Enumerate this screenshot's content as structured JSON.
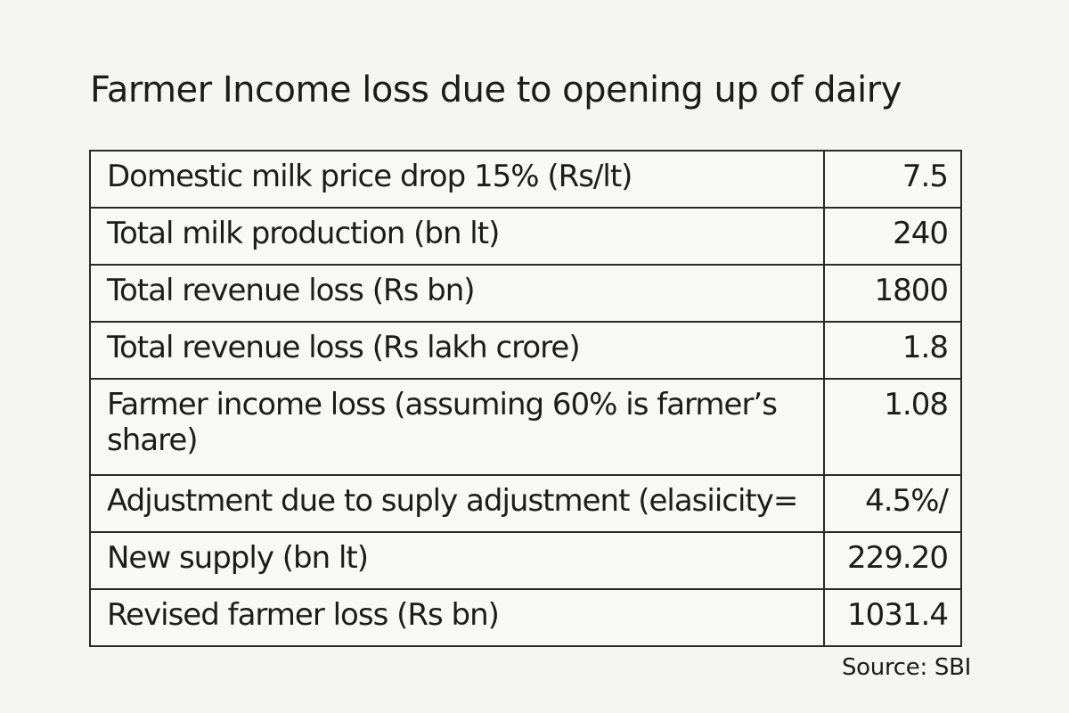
{
  "title": "Farmer Income loss due to opening up of dairy",
  "table": {
    "rows": [
      {
        "label": "Domestic milk price drop 15% (Rs/lt)",
        "value": "7.5"
      },
      {
        "label": "Total milk production (bn lt)",
        "value": "240"
      },
      {
        "label": "Total revenue loss (Rs bn)",
        "value": "1800"
      },
      {
        "label": "Total revenue loss (Rs lakh crore)",
        "value": "1.8"
      },
      {
        "label": "Farmer income loss (assuming 60% is farmer’s share)",
        "value": "1.08"
      },
      {
        "label": "Adjustment due to suply adjustment (elasiicity=",
        "value": "4.5%/"
      },
      {
        "label": "New supply (bn lt)",
        "value": "229.20"
      },
      {
        "label": "Revised farmer loss (Rs bn)",
        "value": "1031.4"
      }
    ]
  },
  "source": "Source: SBI"
}
